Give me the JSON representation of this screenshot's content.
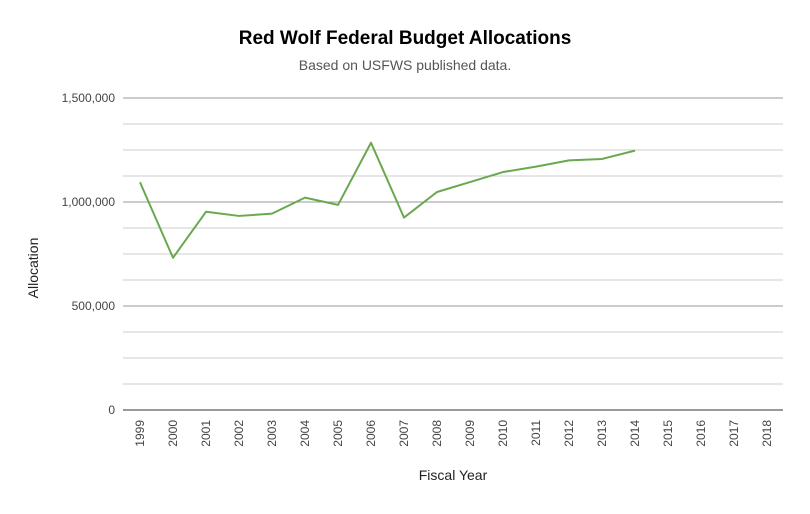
{
  "chart_data": {
    "type": "line",
    "title": "Red Wolf Federal Budget Allocations",
    "subtitle": "Based on USFWS published data.",
    "xlabel": "Fiscal Year",
    "ylabel": "Allocation",
    "categories": [
      "1999",
      "2000",
      "2001",
      "2002",
      "2003",
      "2004",
      "2005",
      "2006",
      "2007",
      "2008",
      "2009",
      "2010",
      "2011",
      "2012",
      "2013",
      "2014",
      "2015",
      "2016",
      "2017",
      "2018"
    ],
    "series": [
      {
        "values": [
          1095000,
          732000,
          953000,
          933000,
          944000,
          1021000,
          986000,
          1285000,
          925000,
          1048000,
          1096000,
          1144000,
          1170000,
          1200000,
          1207000,
          1247000,
          null,
          null,
          null,
          null
        ]
      }
    ],
    "ylim": [
      0,
      1500000
    ],
    "yticks": [
      0,
      500000,
      1000000,
      1500000
    ],
    "ytick_labels": [
      "0",
      "500,000",
      "1,000,000",
      "1,500,000"
    ],
    "minor_grid_step": 125000,
    "grid": true,
    "legend": "none",
    "colors": {
      "line": "#6aa84f",
      "major_grid": "#999999",
      "minor_grid": "#cccccc"
    }
  }
}
